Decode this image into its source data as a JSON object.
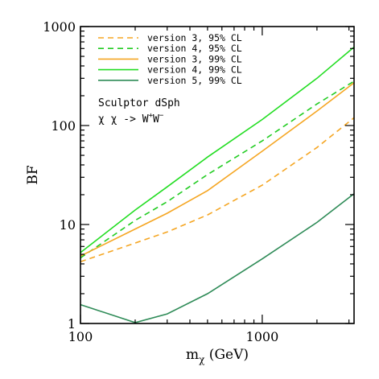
{
  "chart_data": {
    "type": "line",
    "xlabel": "m",
    "xlabel_sub": "χ",
    "xlabel_unit": " (GeV)",
    "ylabel": "BF",
    "x_scale": "log",
    "y_scale": "log",
    "xlim": [
      100,
      3200
    ],
    "ylim": [
      1,
      1000
    ],
    "x_ticks": [
      100,
      1000
    ],
    "x_tick_labels": [
      "100",
      "1000"
    ],
    "y_ticks": [
      1,
      10,
      100,
      1000
    ],
    "y_tick_labels": [
      "1",
      "10",
      "100",
      "1000"
    ],
    "legend_placement": "top-left",
    "annotations": {
      "target": "Sculptor dSph",
      "channel": "χ χ -> W",
      "channel_sup1": "+",
      "channel_mid": "W",
      "channel_sup2": "−"
    },
    "series": [
      {
        "name": "version 3, 95% CL",
        "color": "#f5a623",
        "dash": "dashed",
        "x": [
          100,
          200,
          300,
          500,
          1000,
          2000,
          3200
        ],
        "y": [
          4.2,
          6.5,
          8.4,
          12.5,
          25,
          60,
          120
        ]
      },
      {
        "name": "version 4, 95% CL",
        "color": "#22cc22",
        "dash": "dashed",
        "x": [
          100,
          200,
          300,
          500,
          1000,
          2000,
          3200
        ],
        "y": [
          4.6,
          11,
          17,
          32,
          70,
          165,
          280
        ]
      },
      {
        "name": "version 3, 99% CL",
        "color": "#f5a623",
        "dash": "solid",
        "x": [
          100,
          200,
          300,
          500,
          1000,
          2000,
          3200
        ],
        "y": [
          4.8,
          9,
          13,
          22,
          55,
          140,
          270
        ]
      },
      {
        "name": "version 4, 99% CL",
        "color": "#22dd22",
        "dash": "solid",
        "x": [
          100,
          200,
          300,
          500,
          1000,
          2000,
          3200
        ],
        "y": [
          5.2,
          14,
          24,
          48,
          115,
          300,
          620
        ]
      },
      {
        "name": "version 5, 99% CL",
        "color": "#2e8b57",
        "dash": "solid",
        "x": [
          100,
          200,
          300,
          500,
          1000,
          2000,
          3200
        ],
        "y": [
          1.55,
          1.02,
          1.25,
          2.0,
          4.5,
          10.5,
          20.5
        ]
      }
    ]
  }
}
